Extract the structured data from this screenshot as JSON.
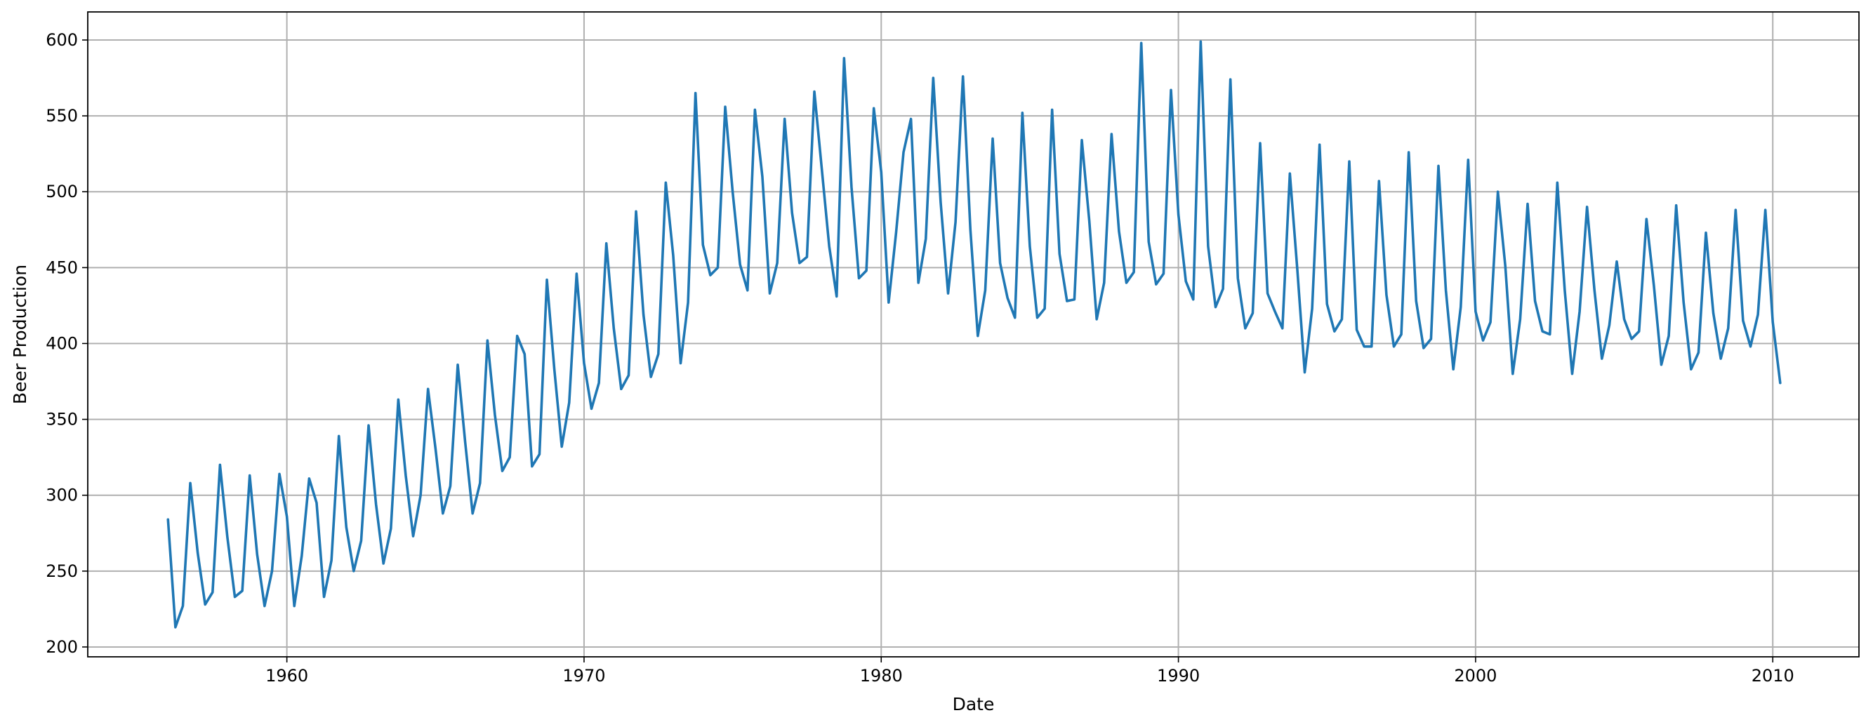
{
  "chart_data": {
    "type": "line",
    "title": "",
    "xlabel": "Date",
    "ylabel": "Beer Production",
    "xlim": [
      1953.3,
      2012.9
    ],
    "ylim": [
      193.5,
      618.5
    ],
    "xticks": [
      1960,
      1970,
      1980,
      1990,
      2000,
      2010
    ],
    "yticks": [
      200,
      250,
      300,
      350,
      400,
      450,
      500,
      550,
      600
    ],
    "grid": true,
    "legend": "none",
    "series": [
      {
        "color": "#1f77b4",
        "start_year": 1956.0,
        "step_years": 0.25,
        "values": [
          284,
          213,
          227,
          308,
          262,
          228,
          236,
          320,
          272,
          233,
          237,
          313,
          261,
          227,
          250,
          314,
          286,
          227,
          260,
          311,
          295,
          233,
          257,
          339,
          279,
          250,
          270,
          346,
          294,
          255,
          278,
          363,
          313,
          273,
          300,
          370,
          331,
          288,
          306,
          386,
          335,
          288,
          308,
          402,
          353,
          316,
          325,
          405,
          393,
          319,
          327,
          442,
          383,
          332,
          361,
          446,
          387,
          357,
          374,
          466,
          410,
          370,
          379,
          487,
          419,
          378,
          393,
          506,
          458,
          387,
          427,
          565,
          465,
          445,
          450,
          556,
          500,
          452,
          435,
          554,
          510,
          433,
          453,
          548,
          486,
          453,
          457,
          566,
          515,
          464,
          431,
          588,
          503,
          443,
          448,
          555,
          513,
          427,
          473,
          526,
          548,
          440,
          469,
          575,
          493,
          433,
          480,
          576,
          475,
          405,
          435,
          535,
          453,
          430,
          417,
          552,
          464,
          417,
          423,
          554,
          459,
          428,
          429,
          534,
          481,
          416,
          440,
          538,
          474,
          440,
          447,
          598,
          467,
          439,
          446,
          567,
          485,
          441,
          429,
          599,
          464,
          424,
          436,
          574,
          443,
          410,
          420,
          532,
          433,
          421,
          410,
          512,
          449,
          381,
          423,
          531,
          426,
          408,
          416,
          520,
          409,
          398,
          398,
          507,
          432,
          398,
          406,
          526,
          428,
          397,
          403,
          517,
          435,
          383,
          424,
          521,
          421,
          402,
          414,
          500,
          451,
          380,
          416,
          492,
          428,
          408,
          406,
          506,
          435,
          380,
          421,
          490,
          435,
          390,
          412,
          454,
          416,
          403,
          408,
          482,
          438,
          386,
          405,
          491,
          427,
          383,
          394,
          473,
          420,
          390,
          410,
          488,
          415,
          398,
          419,
          488,
          414,
          374
        ]
      }
    ]
  }
}
